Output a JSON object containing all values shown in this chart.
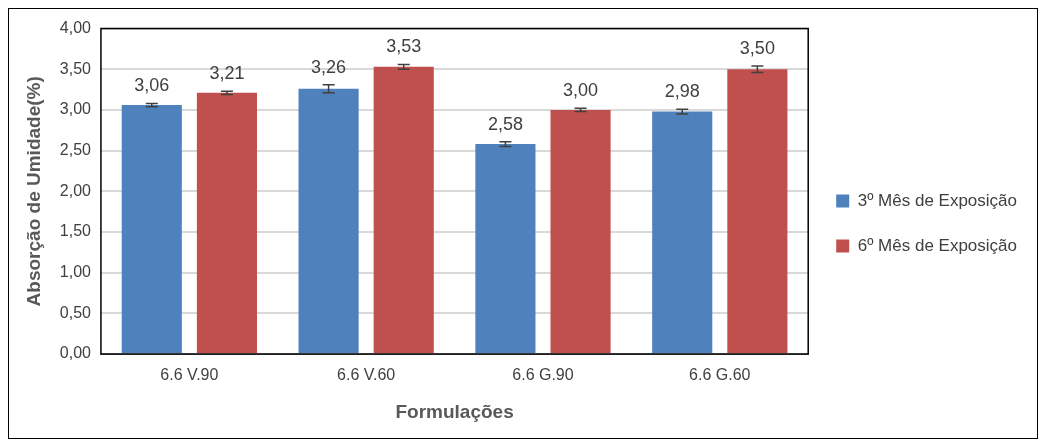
{
  "chart_data": {
    "type": "bar",
    "xlabel": "Formulações",
    "ylabel": "Absorção de Umidade(%)",
    "categories": [
      "6.6 V.90",
      "6.6 V.60",
      "6.6 G.90",
      "6.6 G.60"
    ],
    "series": [
      {
        "name": "3º Mês de Exposição",
        "color": "#4f81bd",
        "values": [
          3.06,
          3.26,
          2.58,
          2.98
        ],
        "errors": [
          0.02,
          0.05,
          0.03,
          0.03
        ],
        "value_labels": [
          "3,06",
          "3,26",
          "2,58",
          "2,98"
        ]
      },
      {
        "name": "6º Mês de Exposição",
        "color": "#c0504d",
        "values": [
          3.21,
          3.53,
          3.0,
          3.5
        ],
        "errors": [
          0.02,
          0.03,
          0.02,
          0.04
        ],
        "value_labels": [
          "3,21",
          "3,53",
          "3,00",
          "3,50"
        ]
      }
    ],
    "ylim": [
      0,
      4
    ],
    "yticks": [
      {
        "value": 0,
        "label": "0,00"
      },
      {
        "value": 0.5,
        "label": "0,50"
      },
      {
        "value": 1,
        "label": "1,00"
      },
      {
        "value": 1.5,
        "label": "1,50"
      },
      {
        "value": 2,
        "label": "2,00"
      },
      {
        "value": 2.5,
        "label": "2,50"
      },
      {
        "value": 3,
        "label": "3,00"
      },
      {
        "value": 3.5,
        "label": "3,50"
      },
      {
        "value": 4,
        "label": "4,00"
      }
    ],
    "grid": "y",
    "legend": "right"
  }
}
